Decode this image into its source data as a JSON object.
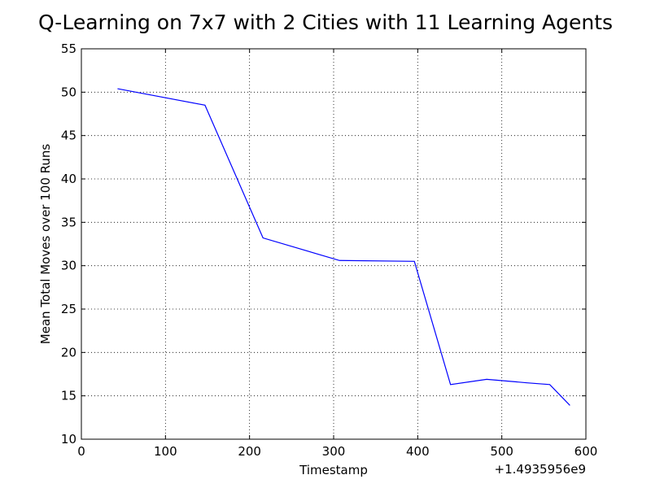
{
  "chart_data": {
    "type": "line",
    "title": "Q-Learning on 7x7 with 2 Cities with 11 Learning Agents",
    "xlabel": "Timestamp",
    "ylabel": "Mean Total Moves over 100 Runs",
    "x_offset_label": "+1.4935956e9",
    "xlim": [
      0,
      600
    ],
    "ylim": [
      10,
      55
    ],
    "x_ticks": [
      "0",
      "100",
      "200",
      "300",
      "400",
      "500",
      "600"
    ],
    "y_ticks": [
      "10",
      "15",
      "20",
      "25",
      "30",
      "35",
      "40",
      "45",
      "50",
      "55"
    ],
    "grid": true,
    "series": [
      {
        "color": "#0000ff",
        "x": [
          43,
          147,
          216,
          307,
          396,
          439,
          482,
          530,
          557,
          581
        ],
        "y": [
          50.4,
          48.5,
          33.2,
          30.6,
          30.5,
          16.3,
          16.9,
          16.5,
          16.3,
          13.9
        ]
      }
    ]
  }
}
